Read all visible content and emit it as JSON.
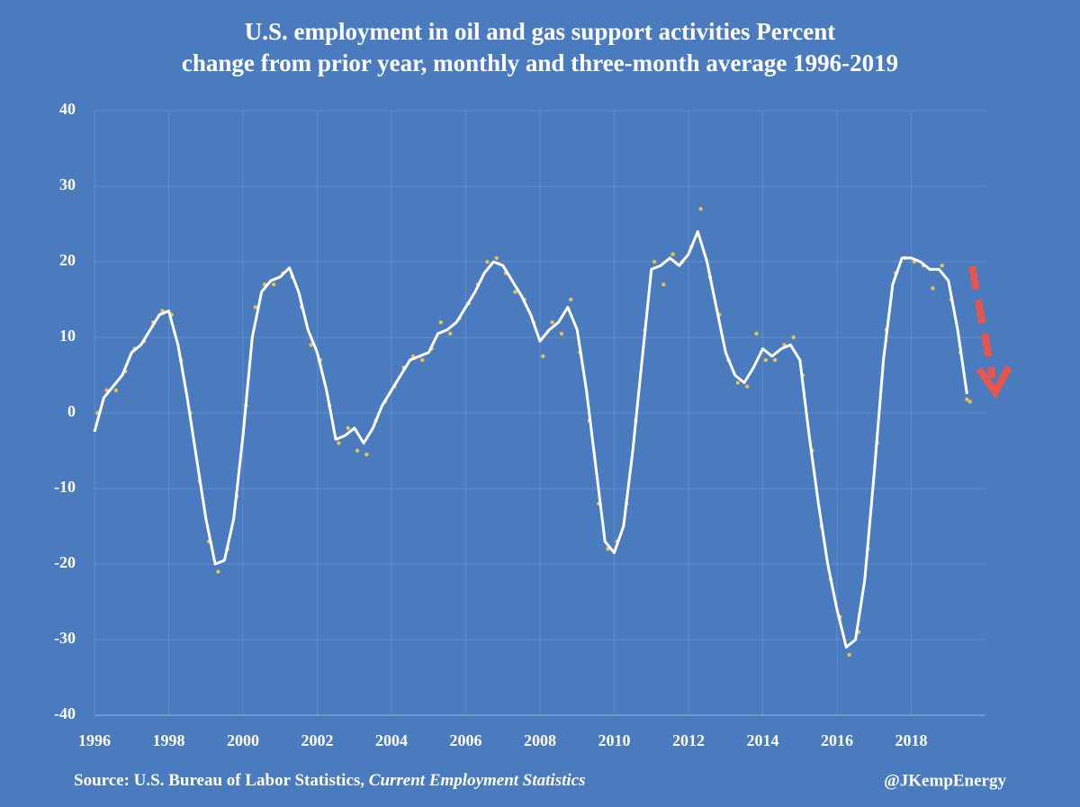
{
  "chart_data": {
    "type": "line",
    "title_lines": [
      "U.S. employment in oil and gas support activities Percent",
      "change from prior year, monthly and three-month average 1996-2019"
    ],
    "source": "Source: U.S. Bureau of Labor Statistics,",
    "source_italic": "Current Employment Statistics",
    "credit": "@JKempEnergy",
    "xlim": [
      1996,
      2020
    ],
    "xticks": [
      1996,
      1998,
      2000,
      2002,
      2004,
      2006,
      2008,
      2010,
      2012,
      2014,
      2016,
      2018
    ],
    "ylim": [
      -40,
      40
    ],
    "yticks": [
      -40,
      -30,
      -20,
      -10,
      0,
      10,
      20,
      30,
      40
    ],
    "grid": true,
    "background": "#4a7bbf",
    "series": [
      {
        "style": "line",
        "color": "#ffffff",
        "x": [
          1996,
          1996.25,
          1996.5,
          1996.75,
          1997,
          1997.25,
          1997.5,
          1997.75,
          1998,
          1998.25,
          1998.5,
          1998.75,
          1999,
          1999.25,
          1999.5,
          1999.75,
          2000,
          2000.25,
          2000.5,
          2000.75,
          2001,
          2001.25,
          2001.5,
          2001.75,
          2002,
          2002.25,
          2002.5,
          2002.75,
          2003,
          2003.25,
          2003.5,
          2003.75,
          2004,
          2004.25,
          2004.5,
          2004.75,
          2005,
          2005.25,
          2005.5,
          2005.75,
          2006,
          2006.25,
          2006.5,
          2006.75,
          2007,
          2007.25,
          2007.5,
          2007.75,
          2008,
          2008.25,
          2008.5,
          2008.75,
          2009,
          2009.25,
          2009.5,
          2009.75,
          2010,
          2010.25,
          2010.5,
          2010.75,
          2011,
          2011.25,
          2011.5,
          2011.75,
          2012,
          2012.25,
          2012.5,
          2012.75,
          2013,
          2013.25,
          2013.5,
          2013.75,
          2014,
          2014.25,
          2014.5,
          2014.75,
          2015,
          2015.25,
          2015.5,
          2015.75,
          2016,
          2016.25,
          2016.5,
          2016.75,
          2017,
          2017.25,
          2017.5,
          2017.75,
          2018,
          2018.25,
          2018.5,
          2018.75,
          2019,
          2019.25,
          2019.5
        ],
        "values": [
          -2.5,
          2,
          3.5,
          5,
          8,
          9,
          11,
          13,
          13.5,
          9,
          2,
          -6,
          -14,
          -20,
          -19.5,
          -14,
          -3,
          10,
          16,
          17.5,
          18,
          19.2,
          16,
          11,
          8,
          3,
          -3.5,
          -3,
          -2,
          -4,
          -2,
          1,
          3,
          5,
          7,
          7.5,
          8,
          10.5,
          11,
          12,
          14,
          16,
          18.5,
          20,
          19.5,
          17.5,
          15.5,
          13,
          9.5,
          11,
          12,
          14,
          11,
          3,
          -7,
          -17,
          -18.5,
          -15,
          -5,
          7,
          19,
          19.5,
          20.5,
          19.5,
          21,
          24,
          20,
          14,
          8,
          5,
          4,
          6,
          8.5,
          7.5,
          8.5,
          9,
          7,
          -3,
          -12,
          -20,
          -26,
          -31,
          -30,
          -22,
          -8,
          7,
          17,
          20.5,
          20.5,
          20,
          19,
          19,
          17.5,
          11,
          2.5
        ]
      },
      {
        "style": "dots",
        "color": "#e8c14a",
        "x": [
          1996.08,
          1996.33,
          1996.58,
          1996.83,
          1997.08,
          1997.33,
          1997.58,
          1997.83,
          1998.08,
          1998.33,
          1998.58,
          1998.83,
          1999.08,
          1999.33,
          1999.58,
          1999.83,
          2000.08,
          2000.33,
          2000.58,
          2000.83,
          2001.08,
          2001.33,
          2001.58,
          2001.83,
          2002.08,
          2002.33,
          2002.58,
          2002.83,
          2003.08,
          2003.33,
          2003.58,
          2003.83,
          2004.08,
          2004.33,
          2004.58,
          2004.83,
          2005.08,
          2005.33,
          2005.58,
          2005.83,
          2006.08,
          2006.33,
          2006.58,
          2006.83,
          2007.08,
          2007.33,
          2007.58,
          2007.83,
          2008.08,
          2008.33,
          2008.58,
          2008.83,
          2009.08,
          2009.33,
          2009.58,
          2009.83,
          2010.08,
          2010.33,
          2010.58,
          2010.83,
          2011.08,
          2011.33,
          2011.58,
          2011.83,
          2012.08,
          2012.33,
          2012.58,
          2012.83,
          2013.08,
          2013.33,
          2013.58,
          2013.83,
          2014.08,
          2014.33,
          2014.58,
          2014.83,
          2015.08,
          2015.33,
          2015.58,
          2015.83,
          2016.08,
          2016.33,
          2016.58,
          2016.83,
          2017.08,
          2017.33,
          2017.58,
          2017.83,
          2018.08,
          2018.33,
          2018.58,
          2018.83,
          2019.08,
          2019.33,
          2019.5,
          2019.58
        ],
        "values": [
          0,
          3,
          3,
          5.5,
          8.5,
          9.5,
          12,
          13.5,
          13,
          7,
          0,
          -9,
          -17,
          -21,
          -18,
          -11,
          1,
          14,
          17,
          17,
          18.5,
          18,
          14,
          9,
          7,
          1,
          -4,
          -2,
          -5,
          -5.5,
          -1,
          1.5,
          3.5,
          6,
          7.5,
          7,
          8.5,
          12,
          10.5,
          12.5,
          14.5,
          17,
          20,
          20.5,
          18.5,
          16,
          15,
          12,
          7.5,
          12,
          10.5,
          15,
          8,
          -1,
          -12,
          -18,
          -17,
          -12,
          -1,
          11,
          20,
          17,
          21,
          20,
          22,
          27,
          18,
          13,
          7,
          4,
          3.5,
          10.5,
          7,
          7,
          9,
          10,
          5,
          -5,
          -15,
          -22,
          -27,
          -32,
          -29,
          -18,
          -4,
          11,
          18.5,
          20.5,
          20,
          19.5,
          16.5,
          19.5,
          15,
          8,
          1.8,
          1.5
        ]
      }
    ]
  }
}
